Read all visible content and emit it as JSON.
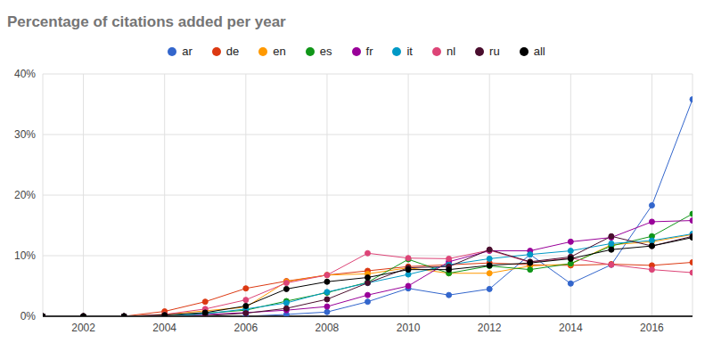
{
  "chart_data": {
    "type": "line",
    "title": "Percentage of citations added per year",
    "legend": "top",
    "grid": true,
    "marker": "circle",
    "x": [
      2001,
      2002,
      2003,
      2004,
      2005,
      2006,
      2007,
      2008,
      2009,
      2010,
      2011,
      2012,
      2013,
      2014,
      2015,
      2016,
      2017
    ],
    "xlim": [
      2001,
      2017
    ],
    "xticks": [
      2002,
      2004,
      2006,
      2008,
      2010,
      2012,
      2014,
      2016
    ],
    "ylim": [
      0,
      40
    ],
    "yticks": [
      {
        "value": 0,
        "label": "0%"
      },
      {
        "value": 10,
        "label": "10%"
      },
      {
        "value": 20,
        "label": "20%"
      },
      {
        "value": 30,
        "label": "30%"
      },
      {
        "value": 40,
        "label": "40%"
      }
    ],
    "series": [
      {
        "name": "ar",
        "color": "#3366cc",
        "values": [
          0,
          0,
          0,
          0,
          0,
          0,
          0.3,
          0.7,
          2.4,
          4.6,
          3.5,
          4.5,
          10.2,
          5.4,
          8.5,
          18.3,
          35.8
        ]
      },
      {
        "name": "de",
        "color": "#dc3912",
        "values": [
          0,
          0,
          0,
          0.8,
          2.4,
          4.6,
          5.8,
          6.8,
          7.5,
          8.2,
          8.5,
          8.8,
          8.5,
          8.4,
          8.6,
          8.4,
          8.9
        ]
      },
      {
        "name": "en",
        "color": "#ff9900",
        "values": [
          0,
          0,
          0,
          0.3,
          0.9,
          1.5,
          5.7,
          6.8,
          7.0,
          8.0,
          7.1,
          7.1,
          8.3,
          8.6,
          11.8,
          12.3,
          13.5
        ]
      },
      {
        "name": "es",
        "color": "#109618",
        "values": [
          0,
          0,
          0,
          0,
          0.5,
          1.0,
          2.5,
          3.9,
          5.6,
          9.4,
          7.1,
          8.3,
          7.7,
          8.7,
          11.6,
          13.2,
          16.9
        ]
      },
      {
        "name": "fr",
        "color": "#990099",
        "values": [
          0,
          0,
          0,
          0,
          0.3,
          0.6,
          1.0,
          1.6,
          3.5,
          5.0,
          9.0,
          10.8,
          10.8,
          12.3,
          13.0,
          15.6,
          15.8
        ]
      },
      {
        "name": "it",
        "color": "#0099c6",
        "values": [
          0,
          0,
          0,
          0,
          0.4,
          1.2,
          2.2,
          4.0,
          5.5,
          6.9,
          8.5,
          9.5,
          10.2,
          10.8,
          12.0,
          12.5,
          13.6
        ]
      },
      {
        "name": "nl",
        "color": "#dd4477",
        "values": [
          0,
          0,
          0,
          0.3,
          1.2,
          2.7,
          5.5,
          6.8,
          10.4,
          9.6,
          9.5,
          10.9,
          8.9,
          9.6,
          8.5,
          7.7,
          7.2
        ]
      },
      {
        "name": "ru",
        "color": "#4a0e2e",
        "values": [
          0,
          0,
          0,
          0,
          0.1,
          0.5,
          1.3,
          2.8,
          5.5,
          8.0,
          8.2,
          11.0,
          9.0,
          9.8,
          13.2,
          11.6,
          13.2
        ]
      },
      {
        "name": "all",
        "color": "#000000",
        "values": [
          0,
          0,
          0,
          0.2,
          0.6,
          1.7,
          4.5,
          5.7,
          6.4,
          7.7,
          7.7,
          8.4,
          8.8,
          9.5,
          11.0,
          11.6,
          13.0
        ]
      }
    ]
  }
}
